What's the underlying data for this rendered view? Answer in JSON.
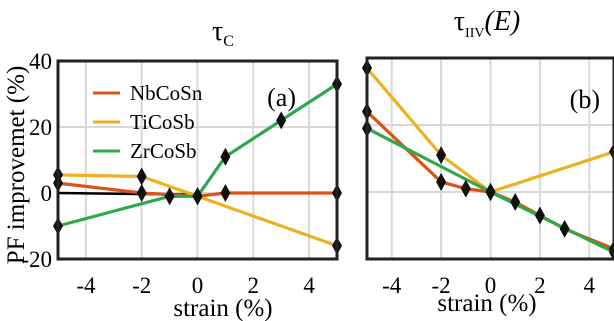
{
  "chart_data": [
    {
      "type": "line",
      "title": "τ_C",
      "title_parts": {
        "base": "τ",
        "sub": "C"
      },
      "panel_label": "(a)",
      "xlabel": "strain (%)",
      "ylabel": "PF improvemet (%)",
      "xlim": [
        -5,
        5
      ],
      "ylim": [
        -20,
        40
      ],
      "xticks": [
        -4,
        -2,
        0,
        2,
        4
      ],
      "yticks": [
        -20,
        0,
        20,
        40
      ],
      "grid": true,
      "legend_position": "top-left",
      "series": [
        {
          "name": "NbCoSn",
          "color": "#d95319",
          "x": [
            -5,
            -2,
            0,
            1,
            5
          ],
          "y": [
            3,
            0,
            -1,
            0,
            0
          ],
          "marker_x": [
            -5,
            -2,
            0,
            1,
            5
          ]
        },
        {
          "name": "TiCoSb",
          "color": "#edb120",
          "x": [
            -5,
            -2,
            0,
            5
          ],
          "y": [
            5.5,
            5,
            -1,
            -16
          ],
          "marker_x": [
            -5,
            -2,
            0,
            5
          ]
        },
        {
          "name": "ZrCoSb",
          "color": "#30a84a",
          "x": [
            -5,
            -1,
            0,
            1,
            3,
            5
          ],
          "y": [
            -10,
            -1,
            -1,
            11,
            22,
            33
          ],
          "marker_x": [
            -5,
            -1,
            0,
            1,
            3,
            5
          ]
        }
      ],
      "reference_line": {
        "x": [
          -5,
          0
        ],
        "y": [
          0,
          -0.5
        ],
        "color": "#000000"
      }
    },
    {
      "type": "line",
      "title": "τ_IIV(E)",
      "title_parts": {
        "base": "τ",
        "sub": "IIV",
        "suffix": "(E)"
      },
      "panel_label": "(b)",
      "xlabel": "strain (%)",
      "ylabel": "",
      "xlim": [
        -5,
        5
      ],
      "ylim": [
        -20,
        40
      ],
      "xticks": [
        -4,
        -2,
        0,
        2,
        4
      ],
      "yticks": [
        -20,
        0,
        20,
        40
      ],
      "grid": true,
      "series": [
        {
          "name": "NbCoSn",
          "color": "#d95319",
          "x": [
            -5,
            -2,
            -1,
            0,
            1,
            2,
            3,
            5
          ],
          "y": [
            24,
            3,
            1,
            0,
            -3,
            -7,
            -11,
            -17
          ],
          "marker_x": [
            -5,
            -2,
            -1,
            0,
            1,
            2,
            3,
            5
          ]
        },
        {
          "name": "TiCoSb",
          "color": "#edb120",
          "x": [
            -5,
            -2,
            0,
            5
          ],
          "y": [
            37,
            11,
            0,
            12
          ],
          "marker_x": [
            -5,
            -2,
            0,
            5
          ]
        },
        {
          "name": "ZrCoSb",
          "color": "#30a84a",
          "x": [
            -5,
            0,
            5
          ],
          "y": [
            19,
            0,
            -18
          ],
          "marker_x": [
            -5,
            0,
            5
          ]
        }
      ]
    }
  ]
}
